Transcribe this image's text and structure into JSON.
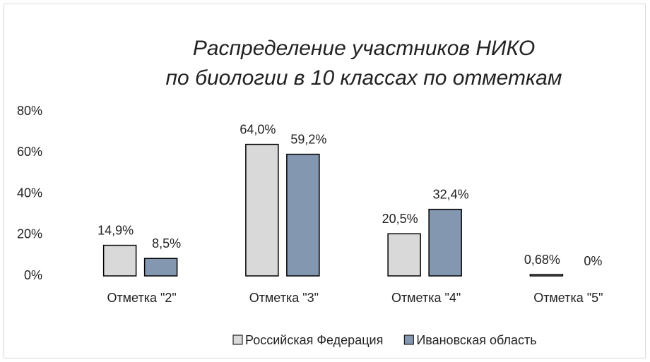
{
  "chart_data": {
    "type": "bar",
    "title": [
      "Распределение участников НИКО",
      "по биологии в 10 классах по отметкам"
    ],
    "categories": [
      "Отметка \"2\"",
      "Отметка \"3\"",
      "Отметка \"4\"",
      "Отметка \"5\""
    ],
    "series": [
      {
        "name": "Российская Федерация",
        "color": "#d9d9d9",
        "values": [
          14.9,
          64.0,
          20.5,
          0.68
        ],
        "value_labels": [
          "14,9%",
          "64,0%",
          "20,5%",
          "0,68%"
        ]
      },
      {
        "name": "Ивановская область",
        "color": "#8497b0",
        "values": [
          8.5,
          59.2,
          32.4,
          0
        ],
        "value_labels": [
          "8,5%",
          "59,2%",
          "32,4%",
          "0%"
        ]
      }
    ],
    "ylim": [
      0,
      80
    ],
    "yticks": [
      {
        "value": 0,
        "label": "0%"
      },
      {
        "value": 20,
        "label": "20%"
      },
      {
        "value": 40,
        "label": "40%"
      },
      {
        "value": 60,
        "label": "60%"
      },
      {
        "value": 80,
        "label": "80%"
      }
    ],
    "grid": false,
    "legend": "bottom"
  }
}
